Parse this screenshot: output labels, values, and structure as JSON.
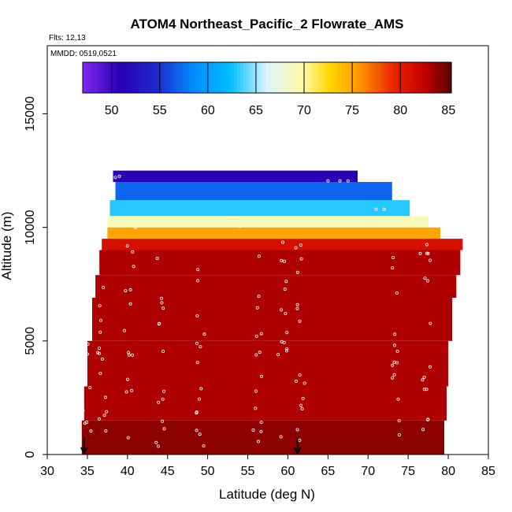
{
  "chart_data": {
    "type": "heatmap",
    "title": "ATOM4 Northeast_Pacific_2 Flowrate_AMS",
    "flights_label": "Flts: 12,13",
    "dates_label": "MMDD: 0519,0521",
    "xlabel": "Latitude (deg N)",
    "ylabel": "Altitude (m)",
    "xlim": [
      30,
      85
    ],
    "ylim": [
      0,
      18000
    ],
    "x_ticks": [
      30,
      35,
      40,
      45,
      50,
      55,
      60,
      65,
      70,
      75,
      80,
      85
    ],
    "y_ticks": [
      0,
      5000,
      10000,
      15000
    ],
    "colorbar": {
      "ticks": [
        50,
        55,
        60,
        65,
        70,
        75,
        80,
        85
      ],
      "range": [
        47,
        85.3
      ],
      "placement": "top-inside"
    },
    "cells": [
      {
        "lat_min": 38.2,
        "lat_max": 68.7,
        "alt_min": 12000,
        "alt_max": 12500,
        "value": 51
      },
      {
        "lat_min": 38.5,
        "lat_max": 73.0,
        "alt_min": 11200,
        "alt_max": 12000,
        "value": 57
      },
      {
        "lat_min": 37.8,
        "lat_max": 75.2,
        "alt_min": 10500,
        "alt_max": 11200,
        "value": 63
      },
      {
        "lat_min": 37.5,
        "lat_max": 77.5,
        "alt_min": 10000,
        "alt_max": 10500,
        "value": 69
      },
      {
        "lat_min": 37.5,
        "lat_max": 79.0,
        "alt_min": 9500,
        "alt_max": 10000,
        "value": 75
      },
      {
        "lat_min": 36.8,
        "lat_max": 81.8,
        "alt_min": 9000,
        "alt_max": 9500,
        "value": 81
      },
      {
        "lat_min": 36.5,
        "lat_max": 81.5,
        "alt_min": 7900,
        "alt_max": 9000,
        "value": 83
      },
      {
        "lat_min": 36.0,
        "lat_max": 81.0,
        "alt_min": 6900,
        "alt_max": 7900,
        "value": 83
      },
      {
        "lat_min": 35.6,
        "lat_max": 80.5,
        "alt_min": 5000,
        "alt_max": 6900,
        "value": 83
      },
      {
        "lat_min": 35.0,
        "lat_max": 80.0,
        "alt_min": 3000,
        "alt_max": 5000,
        "value": 83
      },
      {
        "lat_min": 34.6,
        "lat_max": 79.8,
        "alt_min": 1500,
        "alt_max": 3000,
        "value": 83
      },
      {
        "lat_min": 34.3,
        "lat_max": 79.5,
        "alt_min": 0,
        "alt_max": 1500,
        "value": 84
      }
    ],
    "markers": [
      {
        "lat": 34.6,
        "alt": 0
      },
      {
        "lat": 61.2,
        "alt": 0
      }
    ]
  }
}
